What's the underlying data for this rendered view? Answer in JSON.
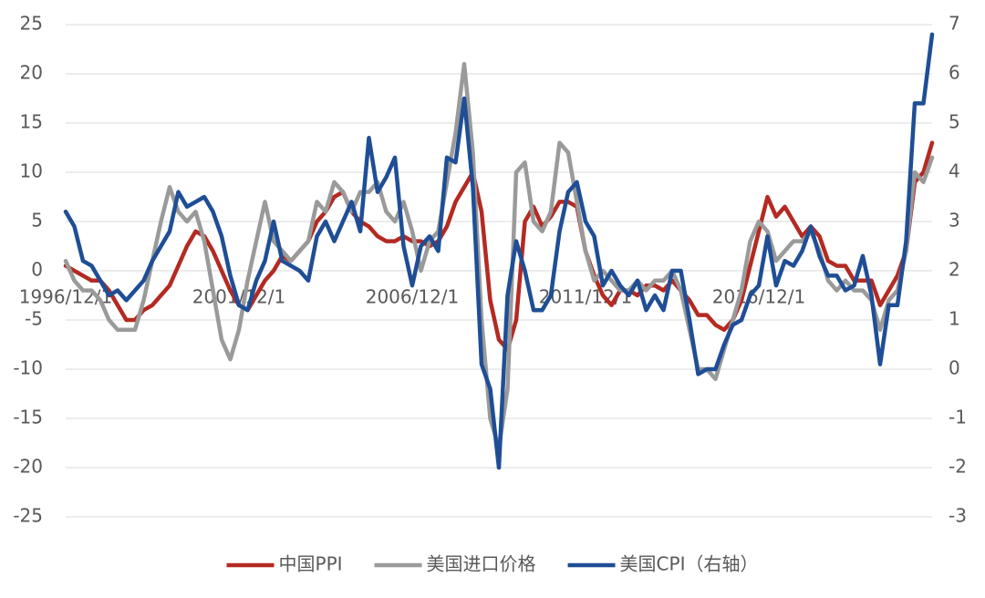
{
  "chart_data": {
    "type": "line",
    "categories": [
      "1996/12/1",
      null,
      null,
      null,
      null,
      null,
      null,
      null,
      null,
      null,
      null,
      null,
      null,
      null,
      null,
      null,
      null,
      null,
      null,
      null,
      "2001/12/1",
      null,
      null,
      null,
      null,
      null,
      null,
      null,
      null,
      null,
      null,
      null,
      null,
      null,
      null,
      null,
      null,
      null,
      null,
      null,
      "2006/12/1",
      null,
      null,
      null,
      null,
      null,
      null,
      null,
      null,
      null,
      null,
      null,
      null,
      null,
      null,
      null,
      null,
      null,
      null,
      null,
      "2011/12/1",
      null,
      null,
      null,
      null,
      null,
      null,
      null,
      null,
      null,
      null,
      null,
      null,
      null,
      null,
      null,
      null,
      null,
      null,
      null,
      "2016/12/1",
      null,
      null,
      null,
      null,
      null,
      null,
      null,
      null,
      null,
      null,
      null,
      null,
      null,
      null,
      null,
      null,
      null,
      null,
      null,
      null
    ],
    "series": [
      {
        "name": "中国PPI",
        "color": "#b42a22",
        "values": [
          0.5,
          0,
          -0.5,
          -1,
          -1,
          -2,
          -3.5,
          -5,
          -5,
          -4,
          -3.5,
          -2.5,
          -1.5,
          0.5,
          2.5,
          4,
          3.5,
          2,
          0,
          -2,
          -3.5,
          -4,
          -2.5,
          -1,
          0,
          1.5,
          1,
          2,
          3,
          5,
          6,
          7.5,
          8,
          6,
          5,
          4.5,
          3.5,
          3,
          3,
          3.5,
          3,
          3,
          2.5,
          3,
          4.5,
          7,
          8.5,
          10,
          6,
          -3,
          -7,
          -8,
          -5,
          5,
          6.5,
          4.5,
          5.5,
          7,
          7,
          6.5,
          2,
          -0.5,
          -2.5,
          -3.5,
          -2,
          -2,
          -2.5,
          -1.5,
          -1.5,
          -2,
          -1,
          -2,
          -3,
          -4.5,
          -4.5,
          -5.5,
          -6,
          -5,
          -3,
          0.5,
          4,
          7.5,
          5.5,
          6.5,
          5,
          3.5,
          4.5,
          3.5,
          1,
          0.5,
          0.5,
          -1,
          -1,
          -1,
          -3.5,
          -2,
          -0.5,
          2,
          9,
          10,
          13
        ]
      },
      {
        "name": "美国进口价格",
        "color": "#9a9a9a",
        "values": [
          1,
          -1,
          -2,
          -2,
          -3,
          -5,
          -6,
          -6,
          -6,
          -3,
          1,
          5,
          8.5,
          6,
          5,
          6,
          3,
          -2,
          -7,
          -9,
          -6,
          -1,
          3,
          7,
          3,
          2,
          1,
          2,
          3,
          7,
          6,
          9,
          8,
          6,
          8,
          8,
          9,
          6,
          5,
          7,
          4,
          0,
          3,
          4,
          9,
          14,
          21,
          12,
          -5,
          -15,
          -18,
          -12,
          10,
          11,
          5,
          4,
          6,
          13,
          12,
          7,
          2,
          -1,
          0,
          -1,
          -2,
          -2,
          -1,
          -2,
          -1,
          -1,
          0,
          -2,
          -6,
          -10,
          -10,
          -11,
          -8,
          -5,
          -2,
          3,
          5,
          4,
          1,
          2,
          3,
          3,
          4,
          2,
          -1,
          -2,
          -1,
          -2,
          -2,
          -3,
          -6,
          -3,
          -2,
          2,
          10,
          9,
          11.5
        ]
      },
      {
        "name": "美国CPI（右轴）",
        "color": "#1f4e96",
        "axis": "y2",
        "values": [
          3.2,
          2.9,
          2.2,
          2.1,
          1.8,
          1.5,
          1.6,
          1.4,
          1.6,
          1.8,
          2.2,
          2.5,
          2.8,
          3.6,
          3.3,
          3.4,
          3.5,
          3.2,
          2.7,
          1.9,
          1.3,
          1.2,
          1.8,
          2.2,
          3.0,
          2.2,
          2.1,
          2.0,
          1.8,
          2.7,
          3.0,
          2.6,
          3.0,
          3.4,
          2.8,
          4.7,
          3.6,
          3.9,
          4.3,
          2.5,
          1.7,
          2.5,
          2.7,
          2.4,
          4.3,
          4.2,
          5.5,
          3.7,
          0.1,
          -0.4,
          -2.0,
          1.5,
          2.6,
          2.0,
          1.2,
          1.2,
          1.5,
          2.8,
          3.6,
          3.8,
          3.0,
          2.7,
          1.7,
          2.0,
          1.7,
          1.5,
          1.8,
          1.2,
          1.5,
          1.2,
          2.0,
          2.0,
          1.0,
          -0.1,
          0.0,
          0.0,
          0.5,
          0.9,
          1.0,
          1.5,
          1.7,
          2.7,
          1.7,
          2.2,
          2.1,
          2.4,
          2.9,
          2.3,
          1.9,
          1.9,
          1.6,
          1.7,
          2.3,
          1.5,
          0.1,
          1.3,
          1.3,
          2.6,
          5.4,
          5.4,
          6.8
        ]
      }
    ],
    "ylim": [
      -25,
      25
    ],
    "yticks": [
      -25,
      -20,
      -15,
      -10,
      -5,
      0,
      5,
      10,
      15,
      20,
      25
    ],
    "y2lim": [
      -3,
      7
    ],
    "y2ticks": [
      -3,
      -2,
      -1,
      0,
      1,
      2,
      3,
      4,
      5,
      6,
      7
    ],
    "grid": true,
    "legend": "bottom"
  }
}
